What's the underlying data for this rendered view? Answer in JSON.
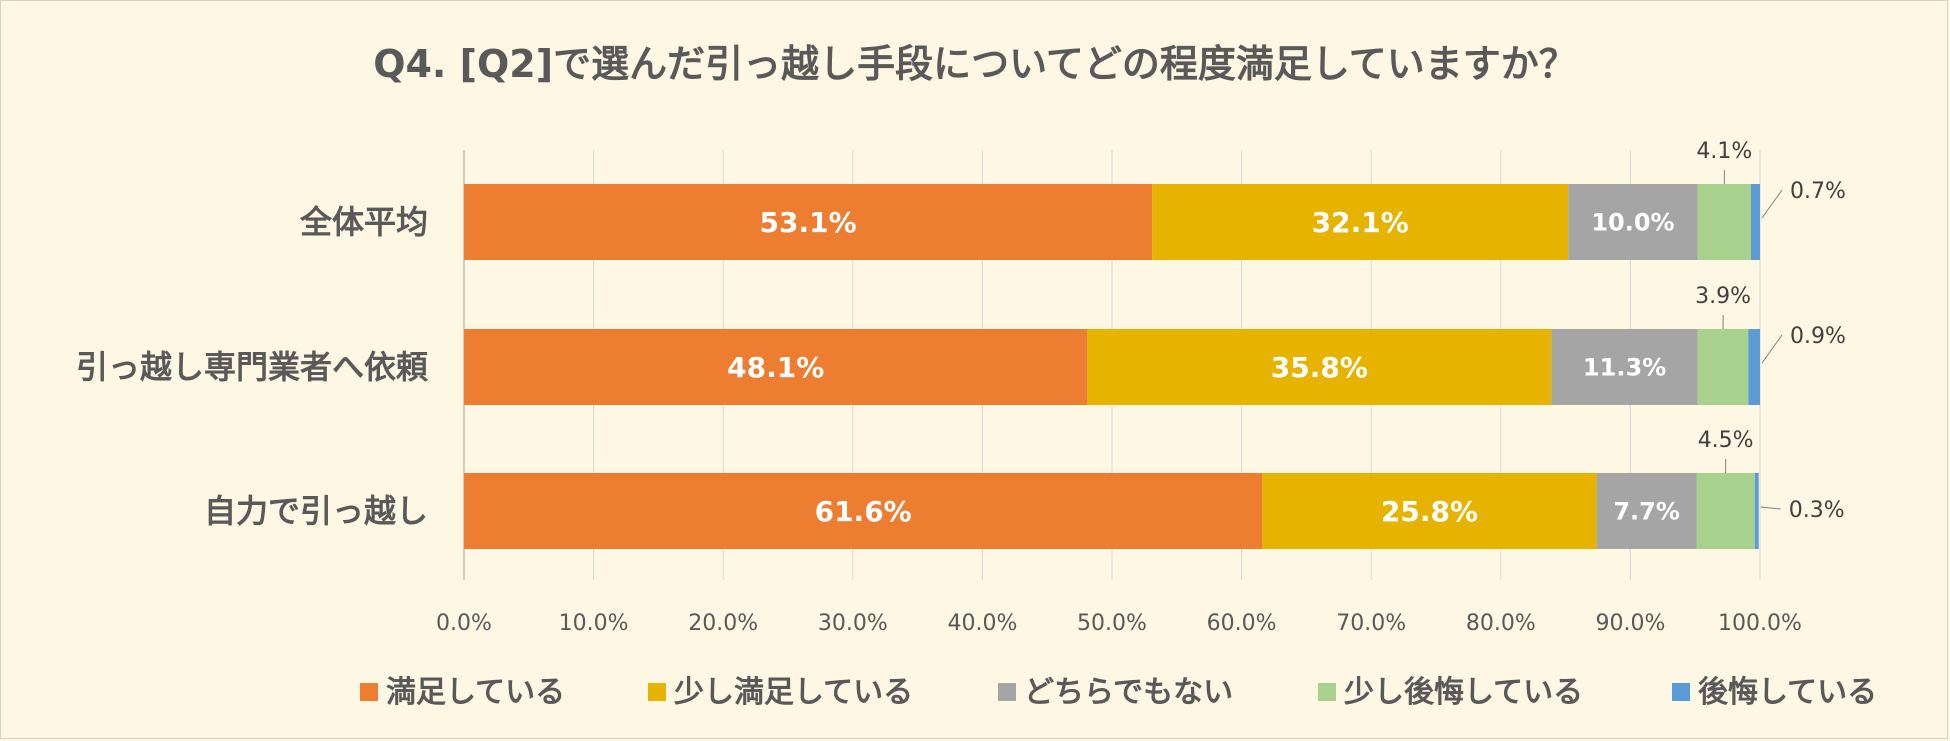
{
  "chart_data": {
    "type": "bar",
    "orientation": "horizontal",
    "stacked": true,
    "title": "Q4. [Q2]で選んだ引っ越し手段についてどの程度満足していますか？",
    "categories": [
      "全体平均",
      "引っ越し専門業者へ依頼",
      "自力で引っ越し"
    ],
    "series": [
      {
        "name": "満足している",
        "color": "#ed7d31",
        "values": [
          53.1,
          48.1,
          61.6
        ],
        "labels": [
          "53.1%",
          "48.1%",
          "61.6%"
        ]
      },
      {
        "name": "少し満足している",
        "color": "#e6b300",
        "values": [
          32.1,
          35.8,
          25.8
        ],
        "labels": [
          "32.1%",
          "35.8%",
          "25.8%"
        ]
      },
      {
        "name": "どちらでもない",
        "color": "#a5a5a5",
        "values": [
          10.0,
          11.3,
          7.7
        ],
        "labels": [
          "10.0%",
          "11.3%",
          "7.7%"
        ]
      },
      {
        "name": "少し後悔している",
        "color": "#a9d18e",
        "values": [
          4.1,
          3.9,
          4.5
        ],
        "labels": [
          "4.1%",
          "3.9%",
          "4.5%"
        ]
      },
      {
        "name": "後悔している",
        "color": "#5b9bd5",
        "values": [
          0.7,
          0.9,
          0.3
        ],
        "labels": [
          "0.7%",
          "0.9%",
          "0.3%"
        ]
      }
    ],
    "xlim": [
      0,
      100
    ],
    "x_ticks": [
      "0.0%",
      "10.0%",
      "20.0%",
      "30.0%",
      "40.0%",
      "50.0%",
      "60.0%",
      "70.0%",
      "80.0%",
      "90.0%",
      "100.0%"
    ],
    "grid": true,
    "legend_position": "bottom"
  }
}
